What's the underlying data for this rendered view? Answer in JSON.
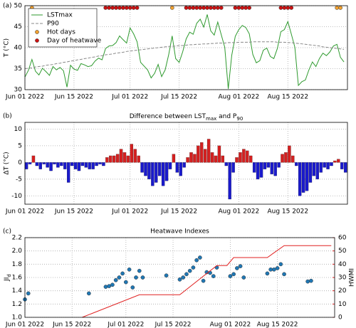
{
  "chart_data": [
    {
      "type": "line",
      "label": "(a)",
      "ylabel": "T (°C)",
      "legend": "upper left",
      "grid": true,
      "xlim": [
        "2022-06-01",
        "2022-09-01"
      ],
      "ylim": [
        30,
        50
      ],
      "yticks": [
        30,
        35,
        40,
        45,
        50
      ],
      "xticks": [
        {
          "value": "2022-06-01",
          "label": "Jun 01 2022"
        },
        {
          "value": "2022-06-15",
          "label": "Jun 15 2022"
        },
        {
          "value": "2022-07-01",
          "label": "Jul 01 2022"
        },
        {
          "value": "2022-07-15",
          "label": "Jul 15 2022"
        },
        {
          "value": "2022-08-01",
          "label": "Aug 01 2022"
        },
        {
          "value": "2022-08-15",
          "label": "Aug 15 2022"
        }
      ],
      "x": [
        "2022-06-01",
        "2022-06-02",
        "2022-06-03",
        "2022-06-04",
        "2022-06-05",
        "2022-06-06",
        "2022-06-07",
        "2022-06-08",
        "2022-06-09",
        "2022-06-10",
        "2022-06-11",
        "2022-06-12",
        "2022-06-13",
        "2022-06-14",
        "2022-06-15",
        "2022-06-16",
        "2022-06-17",
        "2022-06-18",
        "2022-06-19",
        "2022-06-20",
        "2022-06-21",
        "2022-06-22",
        "2022-06-23",
        "2022-06-24",
        "2022-06-25",
        "2022-06-26",
        "2022-06-27",
        "2022-06-28",
        "2022-06-29",
        "2022-06-30",
        "2022-07-01",
        "2022-07-02",
        "2022-07-03",
        "2022-07-04",
        "2022-07-05",
        "2022-07-06",
        "2022-07-07",
        "2022-07-08",
        "2022-07-09",
        "2022-07-10",
        "2022-07-11",
        "2022-07-12",
        "2022-07-13",
        "2022-07-14",
        "2022-07-15",
        "2022-07-16",
        "2022-07-17",
        "2022-07-18",
        "2022-07-19",
        "2022-07-20",
        "2022-07-21",
        "2022-07-22",
        "2022-07-23",
        "2022-07-24",
        "2022-07-25",
        "2022-07-26",
        "2022-07-27",
        "2022-07-28",
        "2022-07-29",
        "2022-07-30",
        "2022-07-31",
        "2022-08-01",
        "2022-08-02",
        "2022-08-03",
        "2022-08-04",
        "2022-08-05",
        "2022-08-06",
        "2022-08-07",
        "2022-08-08",
        "2022-08-09",
        "2022-08-10",
        "2022-08-11",
        "2022-08-12",
        "2022-08-13",
        "2022-08-14",
        "2022-08-15",
        "2022-08-16",
        "2022-08-17",
        "2022-08-18",
        "2022-08-19",
        "2022-08-20",
        "2022-08-21",
        "2022-08-22",
        "2022-08-23",
        "2022-08-24",
        "2022-08-25",
        "2022-08-26",
        "2022-08-27",
        "2022-08-28",
        "2022-08-29",
        "2022-08-30",
        "2022-08-31"
      ],
      "series": [
        {
          "name": "LSTmax",
          "color": "#2e9a2e",
          "linestyle": "solid",
          "values": [
            33.0,
            34.6,
            37.2,
            34.4,
            33.5,
            35.1,
            34.3,
            33.4,
            35.5,
            34.7,
            35.3,
            34.5,
            30.6,
            35.8,
            34.9,
            34.6,
            36.2,
            35.9,
            35.5,
            35.7,
            36.8,
            37.5,
            37.1,
            39.8,
            40.4,
            40.5,
            41.2,
            42.8,
            41.9,
            41.1,
            44.7,
            43.3,
            41.4,
            36.5,
            35.6,
            34.7,
            32.8,
            33.9,
            36.0,
            33.1,
            34.7,
            38.3,
            42.8,
            37.4,
            36.5,
            39.0,
            42.1,
            43.7,
            43.2,
            45.8,
            46.8,
            44.9,
            47.9,
            44.0,
            43.0,
            46.1,
            43.1,
            40.1,
            30.2,
            38.2,
            42.7,
            44.3,
            45.3,
            44.8,
            43.3,
            38.4,
            36.4,
            36.9,
            39.4,
            39.9,
            37.9,
            37.4,
            39.8,
            43.8,
            44.3,
            46.2,
            43.2,
            40.1,
            31.0,
            31.9,
            32.3,
            34.7,
            36.6,
            35.5,
            37.4,
            38.7,
            38.1,
            39.0,
            40.4,
            40.8,
            37.7,
            36.6
          ]
        },
        {
          "name": "P90",
          "color": "#888888",
          "linestyle": "dashed",
          "values": [
            35.0,
            35.1,
            35.2,
            35.4,
            35.5,
            35.6,
            35.8,
            35.9,
            36.0,
            36.2,
            36.3,
            36.5,
            36.6,
            36.8,
            36.9,
            37.1,
            37.2,
            37.4,
            37.5,
            37.7,
            37.8,
            38.0,
            38.1,
            38.3,
            38.4,
            38.5,
            38.7,
            38.8,
            38.9,
            39.1,
            39.2,
            39.3,
            39.4,
            39.5,
            39.6,
            39.7,
            39.8,
            39.9,
            40.0,
            40.1,
            40.2,
            40.3,
            40.3,
            40.4,
            40.5,
            40.5,
            40.6,
            40.7,
            40.7,
            40.8,
            40.8,
            40.9,
            40.9,
            41.0,
            41.0,
            41.1,
            41.1,
            41.1,
            41.2,
            41.2,
            41.2,
            41.3,
            41.3,
            41.3,
            41.3,
            41.4,
            41.4,
            41.4,
            41.4,
            41.4,
            41.4,
            41.4,
            41.3,
            41.3,
            41.3,
            41.2,
            41.2,
            41.1,
            41.0,
            40.9,
            40.8,
            40.7,
            40.6,
            40.5,
            40.4,
            40.2,
            40.1,
            40.0,
            39.9,
            39.8,
            39.7,
            39.6
          ]
        },
        {
          "name": "Hot days",
          "color": "#f0a030",
          "marker": true,
          "x": [
            "2022-06-03",
            "2022-07-13",
            "2022-08-29",
            "2022-08-30"
          ],
          "values": [
            49.5,
            49.5,
            49.5,
            49.5
          ]
        },
        {
          "name": "Day of heatwave",
          "color": "#cc1111",
          "marker": true,
          "x": [
            "2022-06-24",
            "2022-06-25",
            "2022-06-26",
            "2022-06-27",
            "2022-06-28",
            "2022-06-29",
            "2022-06-30",
            "2022-07-01",
            "2022-07-02",
            "2022-07-03",
            "2022-07-17",
            "2022-07-18",
            "2022-07-19",
            "2022-07-20",
            "2022-07-21",
            "2022-07-22",
            "2022-07-23",
            "2022-07-24",
            "2022-07-25",
            "2022-07-26",
            "2022-07-27",
            "2022-07-31",
            "2022-08-01",
            "2022-08-02",
            "2022-08-03",
            "2022-08-04",
            "2022-08-13",
            "2022-08-14",
            "2022-08-15",
            "2022-08-16"
          ],
          "values": [
            49.5,
            49.5,
            49.5,
            49.5,
            49.5,
            49.5,
            49.5,
            49.5,
            49.5,
            49.5,
            49.5,
            49.5,
            49.5,
            49.5,
            49.5,
            49.5,
            49.5,
            49.5,
            49.5,
            49.5,
            49.5,
            49.5,
            49.5,
            49.5,
            49.5,
            49.5,
            49.5,
            49.5,
            49.5,
            49.5
          ]
        }
      ]
    },
    {
      "type": "bar",
      "label": "(b)",
      "title": [
        "Difference between ",
        "LST",
        {
          "sub": "max"
        },
        " and ",
        "P",
        {
          "sub": "90"
        }
      ],
      "ylabel": "ΔT (°C)",
      "grid": true,
      "positive_color": "#d42020",
      "negative_color": "#1a1acc",
      "xlim": [
        "2022-06-01",
        "2022-09-01"
      ],
      "ylim": [
        -12.5,
        12
      ],
      "yticks": [
        -10,
        -5,
        0,
        5,
        10
      ],
      "xticks": [
        {
          "value": "2022-06-01",
          "label": "Jun 01 2022"
        },
        {
          "value": "2022-06-15",
          "label": "Jun 15 2022"
        },
        {
          "value": "2022-07-01",
          "label": "Jul 01 2022"
        },
        {
          "value": "2022-07-15",
          "label": "Jul 15 2022"
        },
        {
          "value": "2022-08-01",
          "label": "Aug 01 2022"
        },
        {
          "value": "2022-08-15",
          "label": "Aug 15 2022"
        }
      ],
      "x": [
        "2022-06-01",
        "2022-06-02",
        "2022-06-03",
        "2022-06-04",
        "2022-06-05",
        "2022-06-06",
        "2022-06-07",
        "2022-06-08",
        "2022-06-09",
        "2022-06-10",
        "2022-06-11",
        "2022-06-12",
        "2022-06-13",
        "2022-06-14",
        "2022-06-15",
        "2022-06-16",
        "2022-06-17",
        "2022-06-18",
        "2022-06-19",
        "2022-06-20",
        "2022-06-21",
        "2022-06-22",
        "2022-06-23",
        "2022-06-24",
        "2022-06-25",
        "2022-06-26",
        "2022-06-27",
        "2022-06-28",
        "2022-06-29",
        "2022-06-30",
        "2022-07-01",
        "2022-07-02",
        "2022-07-03",
        "2022-07-04",
        "2022-07-05",
        "2022-07-06",
        "2022-07-07",
        "2022-07-08",
        "2022-07-09",
        "2022-07-10",
        "2022-07-11",
        "2022-07-12",
        "2022-07-13",
        "2022-07-14",
        "2022-07-15",
        "2022-07-16",
        "2022-07-17",
        "2022-07-18",
        "2022-07-19",
        "2022-07-20",
        "2022-07-21",
        "2022-07-22",
        "2022-07-23",
        "2022-07-24",
        "2022-07-25",
        "2022-07-26",
        "2022-07-27",
        "2022-07-28",
        "2022-07-29",
        "2022-07-30",
        "2022-07-31",
        "2022-08-01",
        "2022-08-02",
        "2022-08-03",
        "2022-08-04",
        "2022-08-05",
        "2022-08-06",
        "2022-08-07",
        "2022-08-08",
        "2022-08-09",
        "2022-08-10",
        "2022-08-11",
        "2022-08-12",
        "2022-08-13",
        "2022-08-14",
        "2022-08-15",
        "2022-08-16",
        "2022-08-17",
        "2022-08-18",
        "2022-08-19",
        "2022-08-20",
        "2022-08-21",
        "2022-08-22",
        "2022-08-23",
        "2022-08-24",
        "2022-08-25",
        "2022-08-26",
        "2022-08-27",
        "2022-08-28",
        "2022-08-29",
        "2022-08-30",
        "2022-08-31"
      ],
      "values": [
        -2,
        -0.5,
        2,
        -1,
        -2,
        -0.5,
        -1.5,
        -2.5,
        -0.5,
        -1.5,
        -1,
        -2,
        -6,
        -1,
        -2,
        -2.5,
        -1,
        -1.5,
        -2,
        -2,
        -1,
        -0.5,
        -1,
        1.5,
        2,
        2,
        2.5,
        4,
        3,
        2,
        5.5,
        4,
        2,
        -3,
        -4,
        -5,
        -7,
        -6,
        -4,
        -7,
        -5.5,
        -2,
        2.5,
        -3,
        -4,
        -1.5,
        1.5,
        3,
        2.5,
        5,
        6,
        4,
        7,
        3,
        2,
        5,
        2,
        -1,
        -11,
        -3,
        1.5,
        3,
        4,
        3.5,
        2,
        -3,
        -5,
        -4.5,
        -2,
        -1.5,
        -3.5,
        -4,
        -1.5,
        2.5,
        3,
        5,
        2,
        -1,
        -10,
        -9,
        -8.5,
        -6,
        -4,
        -5,
        -3,
        -1.5,
        -2,
        -1,
        0.5,
        1,
        -2,
        -3
      ]
    },
    {
      "type": "scatter",
      "label": "(c)",
      "title": "Heatwave Indexes",
      "ylabel": [
        "JI",
        {
          "sub": "d"
        }
      ],
      "y2label": "HWMI",
      "grid": true,
      "xlim": [
        "2022-06-01",
        "2022-09-01"
      ],
      "ylim": [
        1.0,
        2.2
      ],
      "yticks": [
        {
          "value": 1,
          "label": "1.0"
        },
        1.2,
        1.4,
        1.6,
        1.8,
        {
          "value": 2,
          "label": "2.0"
        },
        2.2
      ],
      "y2lim": [
        0,
        60
      ],
      "y2ticks": [
        0,
        10,
        20,
        30,
        40,
        50,
        60
      ],
      "y2color": "#e02020",
      "xticks": [
        {
          "value": "2022-06-01",
          "label": "Jun 01 2022"
        },
        {
          "value": "2022-06-15",
          "label": "Jun 15 2022"
        },
        {
          "value": "2022-07-01",
          "label": "Jul 01 2022"
        },
        {
          "value": "2022-07-15",
          "label": "Jul 15 2022"
        },
        {
          "value": "2022-08-01",
          "label": "Aug 01 2022"
        },
        {
          "value": "2022-08-15",
          "label": "Aug 15 2022"
        }
      ],
      "series": [
        {
          "color": "#1f77b4",
          "marker": true,
          "x": [
            "2022-06-01",
            "2022-06-02",
            "2022-06-20",
            "2022-06-25",
            "2022-06-26",
            "2022-06-27",
            "2022-06-28",
            "2022-06-29",
            "2022-06-30",
            "2022-07-01",
            "2022-07-02",
            "2022-07-03",
            "2022-07-04",
            "2022-07-05",
            "2022-07-06",
            "2022-07-13",
            "2022-07-17",
            "2022-07-18",
            "2022-07-19",
            "2022-07-20",
            "2022-07-21",
            "2022-07-22",
            "2022-07-23",
            "2022-07-24",
            "2022-07-25",
            "2022-07-26",
            "2022-07-27",
            "2022-07-28",
            "2022-08-01",
            "2022-08-02",
            "2022-08-03",
            "2022-08-04",
            "2022-08-05",
            "2022-08-12",
            "2022-08-13",
            "2022-08-14",
            "2022-08-15",
            "2022-08-16",
            "2022-08-17",
            "2022-08-24",
            "2022-08-25"
          ],
          "values": [
            1.27,
            1.36,
            1.36,
            1.46,
            1.47,
            1.49,
            1.56,
            1.6,
            1.66,
            1.53,
            1.72,
            1.45,
            1.6,
            1.7,
            1.6,
            1.63,
            1.57,
            1.6,
            1.65,
            1.7,
            1.75,
            1.86,
            1.9,
            1.55,
            1.68,
            1.67,
            1.62,
            1.75,
            1.62,
            1.65,
            1.74,
            1.77,
            1.6,
            1.66,
            1.72,
            1.72,
            1.74,
            1.8,
            1.65,
            1.54,
            1.55
          ]
        },
        {
          "color": "#e02020",
          "axis": "y2",
          "linestyle": "solid",
          "x": [
            "2022-06-18",
            "2022-07-05",
            "2022-07-17",
            "2022-07-28",
            "2022-07-31",
            "2022-08-02",
            "2022-08-12",
            "2022-08-17",
            "2022-08-31"
          ],
          "values": [
            0,
            17,
            17,
            39,
            39,
            45,
            45,
            54,
            54
          ]
        }
      ]
    }
  ]
}
